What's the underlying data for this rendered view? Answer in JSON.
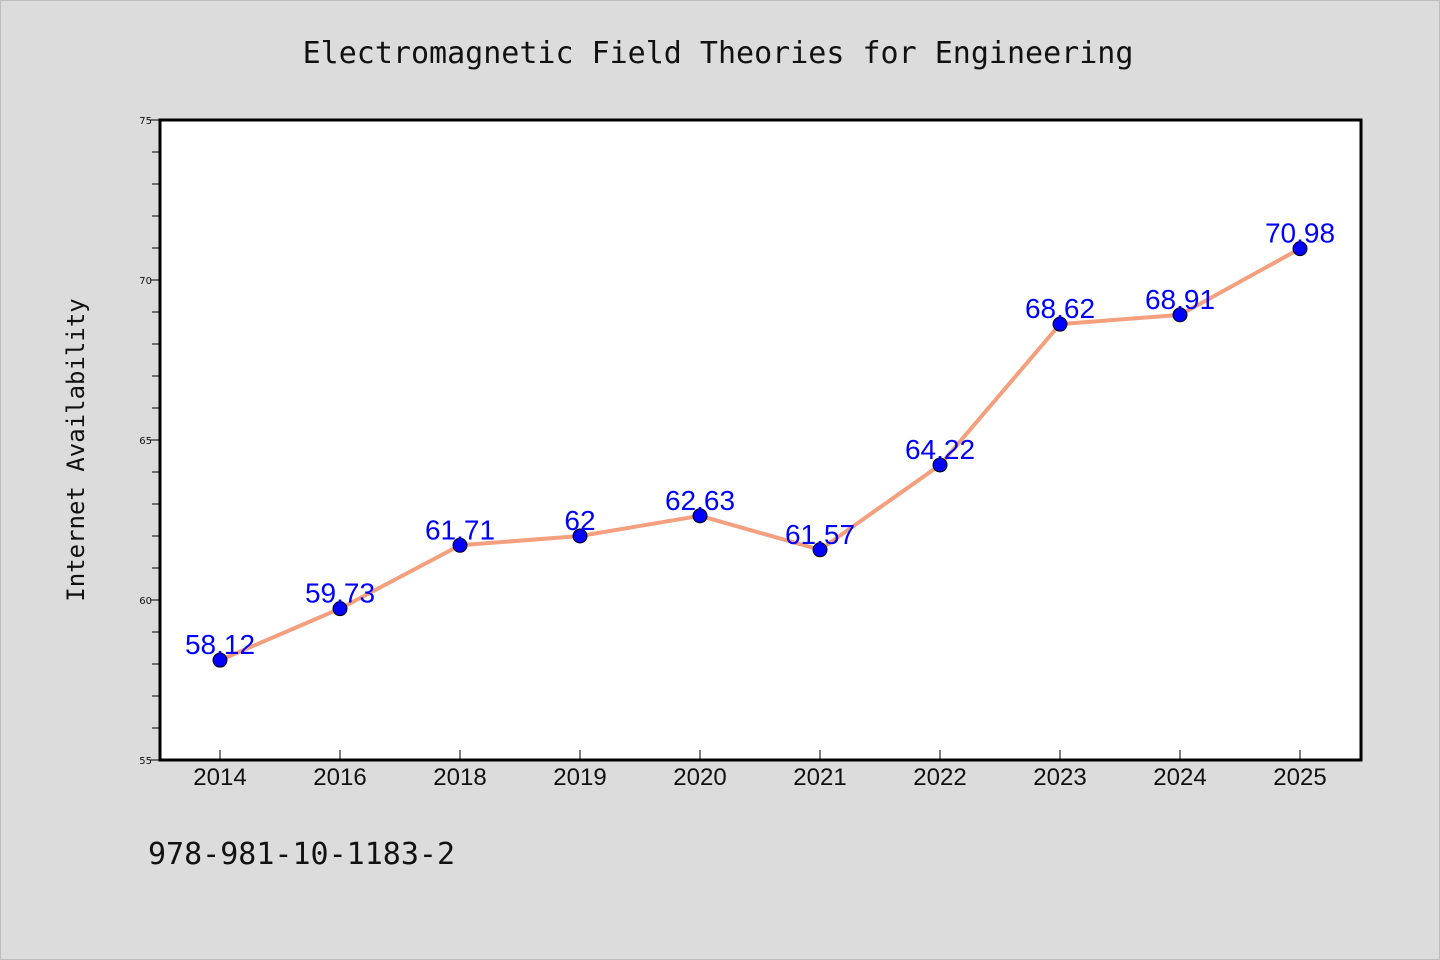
{
  "chart_data": {
    "type": "line",
    "title": "Electromagnetic Field Theories for Engineering",
    "xlabel": "",
    "ylabel": "Internet Availability",
    "categories": [
      "2014",
      "2016",
      "2018",
      "2019",
      "2020",
      "2021",
      "2022",
      "2023",
      "2024",
      "2025"
    ],
    "values": [
      58.12,
      59.73,
      61.71,
      62,
      62.63,
      61.57,
      64.22,
      68.62,
      68.91,
      70.98
    ],
    "value_labels": [
      "58.12",
      "59.73",
      "61.71",
      "62",
      "62.63",
      "61.57",
      "64.22",
      "68.62",
      "68.91",
      "70.98"
    ],
    "ylim": [
      55,
      75
    ],
    "yticks": [
      "55",
      "60",
      "65",
      "70",
      "75"
    ],
    "grid": false,
    "colors": {
      "line": "#f4a07e",
      "marker": "#0000ff",
      "label": "#0000ff",
      "plot_background": "#ffffff",
      "page_background": "#dcdcdc"
    }
  },
  "footer": {
    "isbn": "978-981-10-1183-2"
  }
}
